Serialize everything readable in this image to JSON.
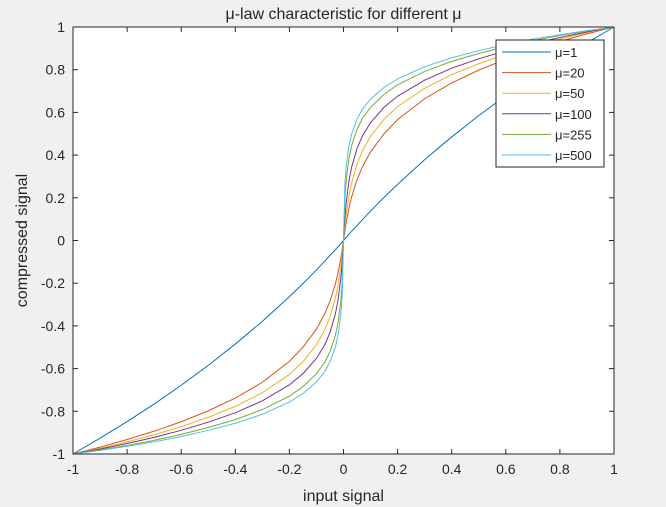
{
  "chart_data": {
    "type": "line",
    "title": "μ-law characteristic for different μ",
    "xlabel": "input signal",
    "ylabel": "compressed signal",
    "xlim": [
      -1,
      1
    ],
    "ylim": [
      -1,
      1
    ],
    "xticks": [
      -1,
      -0.8,
      -0.6,
      -0.4,
      -0.2,
      0,
      0.2,
      0.4,
      0.6,
      0.8,
      1
    ],
    "yticks": [
      -1,
      -0.8,
      -0.6,
      -0.4,
      -0.2,
      0,
      0.2,
      0.4,
      0.6,
      0.8,
      1
    ],
    "xtick_labels": [
      "-1",
      "-0.8",
      "-0.6",
      "-0.4",
      "-0.2",
      "0",
      "0.2",
      "0.4",
      "0.6",
      "0.8",
      "1"
    ],
    "ytick_labels": [
      "-1",
      "-0.8",
      "-0.6",
      "-0.4",
      "-0.2",
      "0",
      "0.2",
      "0.4",
      "0.6",
      "0.8",
      "1"
    ],
    "grid": false,
    "legend_position": "top-right",
    "x": [
      -1,
      -0.9,
      -0.8,
      -0.7,
      -0.6,
      -0.5,
      -0.4,
      -0.3,
      -0.2,
      -0.15,
      -0.1,
      -0.07,
      -0.05,
      -0.03,
      -0.02,
      -0.01,
      -0.005,
      0,
      0.005,
      0.01,
      0.02,
      0.03,
      0.05,
      0.07,
      0.1,
      0.15,
      0.2,
      0.3,
      0.4,
      0.5,
      0.6,
      0.7,
      0.8,
      0.9,
      1
    ],
    "series": [
      {
        "name": "μ=1",
        "color": "#0072bd",
        "values": [
          -1,
          -0.926,
          -0.848,
          -0.766,
          -0.678,
          -0.585,
          -0.485,
          -0.379,
          -0.263,
          -0.202,
          -0.138,
          -0.098,
          -0.07,
          -0.043,
          -0.029,
          -0.014,
          -0.007,
          0,
          0.007,
          0.014,
          0.029,
          0.043,
          0.07,
          0.098,
          0.138,
          0.202,
          0.263,
          0.379,
          0.485,
          0.585,
          0.678,
          0.766,
          0.848,
          0.926,
          1
        ]
      },
      {
        "name": "μ=20",
        "color": "#d95319",
        "values": [
          -1,
          -0.968,
          -0.932,
          -0.893,
          -0.849,
          -0.798,
          -0.738,
          -0.664,
          -0.566,
          -0.5,
          -0.415,
          -0.345,
          -0.285,
          -0.204,
          -0.15,
          -0.083,
          -0.044,
          0,
          0.044,
          0.083,
          0.15,
          0.204,
          0.285,
          0.345,
          0.415,
          0.5,
          0.566,
          0.664,
          0.738,
          0.798,
          0.849,
          0.893,
          0.932,
          0.968,
          1
        ]
      },
      {
        "name": "μ=50",
        "color": "#edb120",
        "values": [
          -1,
          -0.973,
          -0.943,
          -0.91,
          -0.872,
          -0.828,
          -0.777,
          -0.713,
          -0.627,
          -0.568,
          -0.488,
          -0.42,
          -0.358,
          -0.27,
          -0.207,
          -0.121,
          -0.067,
          0,
          0.067,
          0.121,
          0.207,
          0.27,
          0.358,
          0.42,
          0.488,
          0.568,
          0.627,
          0.713,
          0.777,
          0.828,
          0.872,
          0.91,
          0.943,
          0.973,
          1
        ]
      },
      {
        "name": "μ=100",
        "color": "#7e2f8e",
        "values": [
          -1,
          -0.977,
          -0.951,
          -0.922,
          -0.889,
          -0.851,
          -0.807,
          -0.751,
          -0.676,
          -0.624,
          -0.552,
          -0.49,
          -0.431,
          -0.344,
          -0.278,
          -0.177,
          -0.106,
          0,
          0.106,
          0.177,
          0.278,
          0.344,
          0.431,
          0.49,
          0.552,
          0.624,
          0.676,
          0.751,
          0.807,
          0.851,
          0.889,
          0.922,
          0.951,
          0.977,
          1
        ]
      },
      {
        "name": "μ=255",
        "color": "#77ac30",
        "values": [
          -1,
          -0.981,
          -0.96,
          -0.936,
          -0.908,
          -0.876,
          -0.839,
          -0.792,
          -0.729,
          -0.685,
          -0.624,
          -0.572,
          -0.521,
          -0.445,
          -0.384,
          -0.282,
          -0.196,
          0,
          0.196,
          0.282,
          0.384,
          0.445,
          0.521,
          0.572,
          0.624,
          0.685,
          0.729,
          0.792,
          0.839,
          0.876,
          0.908,
          0.936,
          0.96,
          0.981,
          1
        ]
      },
      {
        "name": "μ=500",
        "color": "#4dbeee",
        "values": [
          -1,
          -0.983,
          -0.964,
          -0.943,
          -0.918,
          -0.889,
          -0.856,
          -0.814,
          -0.757,
          -0.717,
          -0.663,
          -0.615,
          -0.569,
          -0.499,
          -0.443,
          -0.347,
          -0.258,
          0,
          0.258,
          0.347,
          0.443,
          0.499,
          0.569,
          0.615,
          0.663,
          0.717,
          0.757,
          0.814,
          0.856,
          0.889,
          0.918,
          0.943,
          0.964,
          0.983,
          1
        ]
      }
    ]
  }
}
